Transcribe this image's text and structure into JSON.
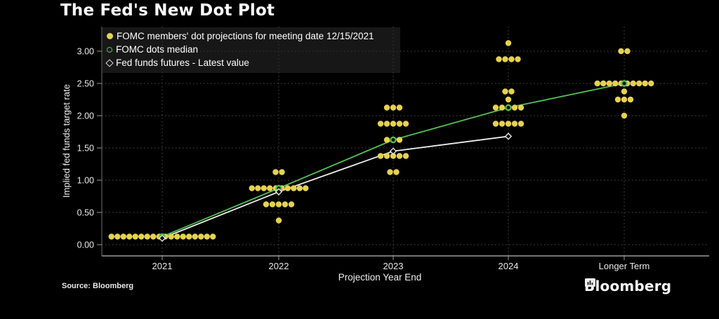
{
  "title": "The Fed's New Dot Plot",
  "source_text": "Source: Bloomberg",
  "brand": {
    "logo_text": "Bloomberg",
    "logo_icon": "bar-chart-bubble-icon"
  },
  "colors": {
    "background": "#000000",
    "dot_yellow": "#e6d24f",
    "median_green": "#52c152",
    "futures_white": "#ededed",
    "gridline": "#4d4d4d",
    "axis_line": "#9a9a9a",
    "tick_text": "#e8e8e8",
    "legend_bg": "rgba(42,42,42,0.55)"
  },
  "legend": {
    "items": [
      {
        "marker": "filled-circle",
        "color": "#e6d24f",
        "label": "FOMC members' dot projections for meeting date 12/15/2021"
      },
      {
        "marker": "open-circle",
        "color": "#52c152",
        "label": "FOMC dots median"
      },
      {
        "marker": "open-diamond",
        "color": "#d9d9d9",
        "label": "Fed funds futures - Latest value"
      }
    ]
  },
  "chart_data": {
    "type": "scatter",
    "title": "The Fed's New Dot Plot",
    "xlabel": "Projection Year End",
    "ylabel": "Implied fed funds target rate",
    "categories": [
      "2021",
      "2022",
      "2023",
      "2024",
      "Longer Term"
    ],
    "ylim": [
      0,
      3.25
    ],
    "grid": true,
    "legend_position": "top-left",
    "yticks": [
      {
        "value": 0.0,
        "label": "0.00"
      },
      {
        "value": 0.5,
        "label": "0.50"
      },
      {
        "value": 1.0,
        "label": "1.00"
      },
      {
        "value": 1.5,
        "label": "1.50"
      },
      {
        "value": 2.0,
        "label": "2.00"
      },
      {
        "value": 2.5,
        "label": "2.50"
      },
      {
        "value": 3.0,
        "label": "3.00"
      }
    ],
    "dot_groups": [
      {
        "category": "2021",
        "value": 0.125,
        "count": 18
      },
      {
        "category": "2022",
        "value": 1.125,
        "count": 2
      },
      {
        "category": "2022",
        "value": 0.875,
        "count": 10
      },
      {
        "category": "2022",
        "value": 0.625,
        "count": 5
      },
      {
        "category": "2022",
        "value": 0.375,
        "count": 1
      },
      {
        "category": "2023",
        "value": 2.125,
        "count": 3
      },
      {
        "category": "2023",
        "value": 1.875,
        "count": 5
      },
      {
        "category": "2023",
        "value": 1.625,
        "count": 3
      },
      {
        "category": "2023",
        "value": 1.375,
        "count": 5
      },
      {
        "category": "2023",
        "value": 1.125,
        "count": 2
      },
      {
        "category": "2024",
        "value": 3.125,
        "count": 1
      },
      {
        "category": "2024",
        "value": 2.875,
        "count": 4
      },
      {
        "category": "2024",
        "value": 2.375,
        "count": 2
      },
      {
        "category": "2024",
        "value": 2.25,
        "count": 1
      },
      {
        "category": "2024",
        "value": 2.125,
        "count": 5
      },
      {
        "category": "2024",
        "value": 1.875,
        "count": 5
      },
      {
        "category": "Longer Term",
        "value": 3.0,
        "count": 2
      },
      {
        "category": "Longer Term",
        "value": 2.5,
        "count": 10
      },
      {
        "category": "Longer Term",
        "value": 2.375,
        "count": 1
      },
      {
        "category": "Longer Term",
        "value": 2.25,
        "count": 3
      },
      {
        "category": "Longer Term",
        "value": 2.0,
        "count": 1
      }
    ],
    "series": [
      {
        "name": "FOMC dots median",
        "marker": "open-circle",
        "color": "#52c152",
        "categories": [
          "2021",
          "2022",
          "2023",
          "2024",
          "Longer Term"
        ],
        "values": [
          0.125,
          0.875,
          1.625,
          2.125,
          2.5
        ]
      },
      {
        "name": "Fed funds futures - Latest value",
        "marker": "open-diamond",
        "color": "#ededed",
        "categories": [
          "2021",
          "2022",
          "2023",
          "2024"
        ],
        "values": [
          0.1,
          0.82,
          1.45,
          1.68
        ]
      }
    ]
  }
}
